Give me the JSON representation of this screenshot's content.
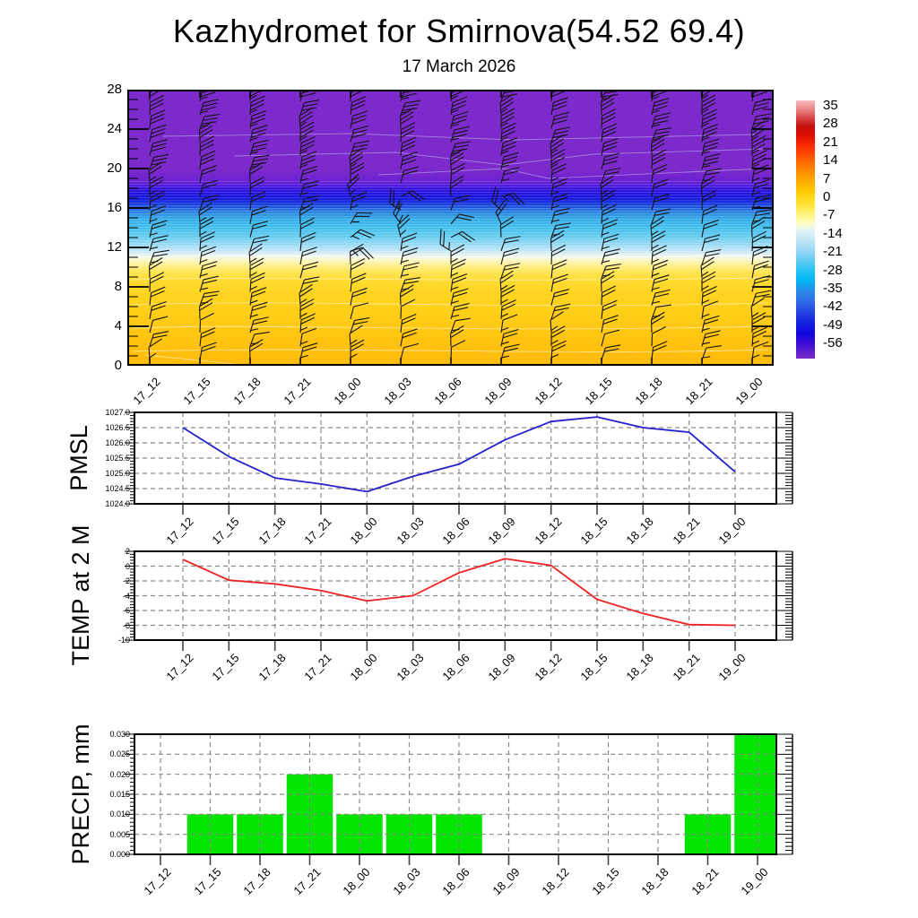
{
  "header": {
    "title": "Kazhydromet for Smirnova(54.52 69.4)",
    "subtitle": "17 March 2026"
  },
  "time_labels": [
    "17_12",
    "17_15",
    "17_18",
    "17_21",
    "18_00",
    "18_03",
    "18_06",
    "18_09",
    "18_12",
    "18_15",
    "18_18",
    "18_21",
    "19_00"
  ],
  "chart_data": [
    {
      "type": "heatmap",
      "name": "temperature-height-cross-section",
      "x_categories": [
        "17_12",
        "17_15",
        "17_18",
        "17_21",
        "18_00",
        "18_03",
        "18_06",
        "18_09",
        "18_12",
        "18_15",
        "18_18",
        "18_21",
        "19_00"
      ],
      "y_ticks": [
        "28",
        "24",
        "20",
        "16",
        "12",
        "8",
        "4",
        "0"
      ],
      "y_range": [
        0,
        28
      ],
      "overlay": "wind-barb-field",
      "legend_position": "right",
      "colorbar": {
        "ticks": [
          "35",
          "28",
          "21",
          "14",
          "7",
          "0",
          "-7",
          "-14",
          "-21",
          "-28",
          "-35",
          "-42",
          "-49",
          "-56"
        ],
        "top_color": "#f6bdbd",
        "zero_color": "#ffcf08",
        "mid_color": "#fffdc2",
        "bottom_color": "#7b2bc8"
      },
      "vertical_profile_bands_top_to_bottom": [
        {
          "range_y": "18.5-28",
          "color_zone": "purple (~ -56)"
        },
        {
          "range_y": "16-18.5",
          "color_zone": "dark blue (~ -49)"
        },
        {
          "range_y": "11.5-16",
          "color_zone": "cyan / light blue (-42 to -21)"
        },
        {
          "range_y": "10.5-11.5",
          "color_zone": "pale yellow (~ -14)"
        },
        {
          "range_y": "0-10.5",
          "color_zone": "yellow-gold (-7 to 0)"
        }
      ]
    },
    {
      "type": "line",
      "name": "pmsl",
      "ylabel": "PMSL",
      "color": "#2222cc",
      "ylim": [
        1024.0,
        1027.0
      ],
      "yticks": [
        "1027.0",
        "1026.5",
        "1026.0",
        "1025.5",
        "1025.0",
        "1024.5",
        "1024.0"
      ],
      "grid": "dashed",
      "x": [
        "17_12",
        "17_15",
        "17_18",
        "17_21",
        "18_00",
        "18_03",
        "18_06",
        "18_09",
        "18_12",
        "18_15",
        "18_18",
        "18_21",
        "19_00"
      ],
      "values": [
        1026.5,
        1025.55,
        1024.85,
        1024.65,
        1024.4,
        1024.9,
        1025.3,
        1026.1,
        1026.7,
        1026.85,
        1026.5,
        1026.35,
        1025.05
      ]
    },
    {
      "type": "line",
      "name": "temp-2m",
      "ylabel": "TEMP at 2 M",
      "color": "#ee2222",
      "ylim": [
        -10,
        2
      ],
      "yticks": [
        "2",
        "0",
        "-2",
        "-4",
        "-6",
        "-8",
        "-10"
      ],
      "grid": "dashed",
      "x": [
        "17_12",
        "17_15",
        "17_18",
        "17_21",
        "18_00",
        "18_03",
        "18_06",
        "18_09",
        "18_12",
        "18_15",
        "18_18",
        "18_21",
        "19_00"
      ],
      "values": [
        0.9,
        -1.9,
        -2.4,
        -3.3,
        -4.7,
        -4.0,
        -0.9,
        1.0,
        0.1,
        -4.5,
        -6.4,
        -7.9,
        -8.0
      ]
    },
    {
      "type": "bar",
      "name": "precip",
      "ylabel": "PRECIP, mm",
      "color": "#00e400",
      "ylim": [
        0,
        0.03
      ],
      "yticks": [
        "0.030",
        "0.025",
        "0.020",
        "0.015",
        "0.010",
        "0.005",
        "0.000"
      ],
      "grid": "dashed",
      "x": [
        "17_12",
        "17_15",
        "17_18",
        "17_21",
        "18_00",
        "18_03",
        "18_06",
        "18_09",
        "18_12",
        "18_15",
        "18_18",
        "18_21",
        "19_00"
      ],
      "values": [
        0,
        0.01,
        0.01,
        0.02,
        0.01,
        0.01,
        0.01,
        0,
        0,
        0,
        0,
        0.01,
        0.03
      ]
    }
  ]
}
